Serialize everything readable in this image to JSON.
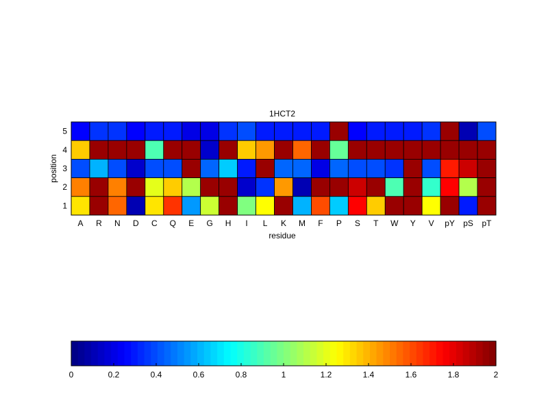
{
  "chart_data": [
    {
      "type": "heatmap",
      "title": "1HCT2",
      "xlabel": "residue",
      "ylabel": "position",
      "x_categories": [
        "A",
        "R",
        "N",
        "D",
        "C",
        "Q",
        "E",
        "G",
        "H",
        "I",
        "L",
        "K",
        "M",
        "F",
        "P",
        "S",
        "T",
        "W",
        "Y",
        "V",
        "pY",
        "pS",
        "pT"
      ],
      "y_categories": [
        "5",
        "4",
        "3",
        "2",
        "1"
      ],
      "color_range": [
        0,
        2
      ],
      "colormap": "jet",
      "values": [
        [
          0.25,
          0.35,
          0.35,
          0.25,
          0.3,
          0.3,
          0.2,
          0.2,
          0.35,
          0.4,
          0.3,
          0.3,
          0.3,
          0.3,
          1.95,
          0.25,
          0.3,
          0.3,
          0.3,
          0.35,
          1.95,
          0.1,
          0.4
        ],
        [
          1.35,
          1.95,
          1.95,
          1.95,
          0.9,
          1.95,
          1.95,
          0.15,
          1.95,
          1.35,
          1.45,
          1.95,
          1.55,
          1.95,
          0.95,
          1.95,
          1.95,
          1.95,
          1.95,
          1.95,
          1.95,
          1.95,
          1.95
        ],
        [
          0.4,
          0.6,
          0.4,
          0.15,
          0.4,
          0.4,
          1.95,
          0.45,
          0.65,
          0.3,
          1.95,
          0.45,
          0.45,
          0.2,
          0.45,
          0.4,
          0.4,
          0.35,
          1.95,
          0.4,
          1.7,
          1.85,
          1.95
        ],
        [
          1.5,
          1.95,
          1.5,
          1.95,
          1.2,
          1.35,
          1.1,
          1.95,
          1.95,
          0.15,
          0.35,
          1.45,
          0.1,
          1.95,
          1.95,
          1.85,
          1.95,
          0.9,
          1.95,
          0.85,
          1.75,
          1.1,
          1.95
        ],
        [
          1.3,
          1.95,
          1.55,
          0.1,
          1.3,
          1.65,
          0.55,
          1.15,
          1.95,
          1.0,
          1.25,
          1.95,
          0.6,
          1.6,
          0.65,
          1.75,
          1.35,
          1.95,
          1.95,
          1.25,
          1.95,
          0.3,
          1.95
        ]
      ],
      "colorbar": {
        "ticks": [
          "0",
          "0.2",
          "0.4",
          "0.6",
          "0.8",
          "1",
          "1.2",
          "1.4",
          "1.6",
          "1.8",
          "2"
        ],
        "orientation": "horizontal"
      }
    }
  ]
}
